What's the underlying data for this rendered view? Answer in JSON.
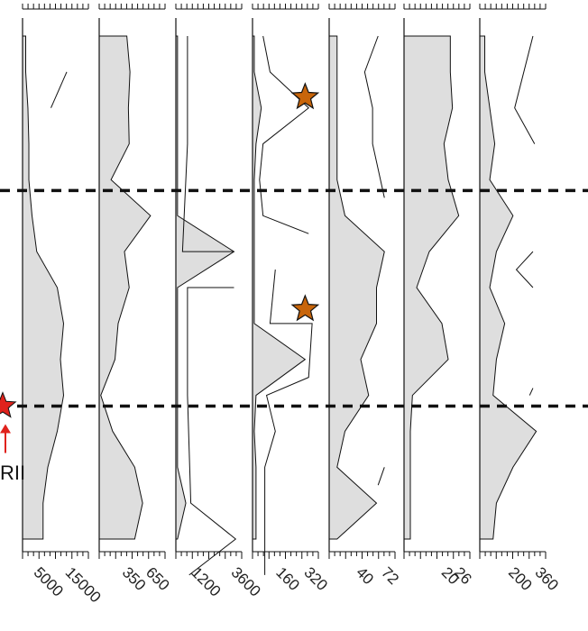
{
  "chart_data": {
    "type": "area",
    "orientation": "vertical-stratigraphic",
    "title": "",
    "grid": false,
    "legend": "none",
    "colors": {
      "fill": "#dedede",
      "line": "#111111",
      "marker": "#c8650a",
      "marker_stroke": "#111111",
      "highlight": "#e0221c",
      "dashed": "#111111"
    },
    "depth_axis": {
      "samples": 15,
      "ticks_shown": false
    },
    "panels": [
      {
        "name": "panel-1",
        "xlim": [
          0,
          20000
        ],
        "tick_labels": [
          "5000",
          "15000"
        ],
        "tick_values": [
          5000,
          15000
        ],
        "area": [
          1000,
          1000,
          1700,
          2000,
          2000,
          3000,
          4500,
          11000,
          13000,
          12000,
          13000,
          11000,
          8000,
          6500,
          6500
        ],
        "line_segments": [
          [
            [
              9000,
              2
            ],
            [
              14000,
              1
            ]
          ]
        ]
      },
      {
        "name": "panel-2",
        "xlim": [
          0,
          800
        ],
        "tick_labels": [
          "350",
          "650"
        ],
        "tick_values": [
          350,
          650
        ],
        "area": [
          350,
          390,
          370,
          380,
          150,
          650,
          320,
          380,
          240,
          200,
          20,
          170,
          450,
          550,
          450
        ]
      },
      {
        "name": "panel-3",
        "xlim": [
          0,
          3800
        ],
        "tick_labels": [
          "1200",
          "3600"
        ],
        "tick_values": [
          1200,
          3600
        ],
        "area": [
          100,
          100,
          100,
          100,
          100,
          100,
          3500,
          100,
          100,
          100,
          100,
          100,
          100,
          600,
          100
        ],
        "line_segments": [
          [
            [
              700,
              0
            ],
            [
              700,
              3
            ],
            [
              400,
              6
            ],
            [
              3500,
              6
            ]
          ],
          [
            [
              3500,
              7
            ],
            [
              700,
              7
            ],
            [
              700,
              10
            ],
            [
              900,
              13
            ],
            [
              3600,
              14
            ],
            [
              800,
              15
            ]
          ]
        ]
      },
      {
        "name": "panel-4",
        "xlim": [
          0,
          360
        ],
        "tick_labels": [
          "160",
          "320"
        ],
        "tick_values": [
          160,
          320
        ],
        "area": [
          10,
          10,
          50,
          20,
          10,
          10,
          10,
          10,
          10,
          300,
          20,
          10,
          20,
          20,
          20
        ],
        "line_segments": [
          [
            [
              60,
              0
            ],
            [
              100,
              1
            ],
            [
              320,
              2
            ],
            [
              60,
              3
            ],
            [
              40,
              4
            ],
            [
              60,
              5
            ],
            [
              320,
              5.5
            ]
          ],
          [
            [
              130,
              6.5
            ],
            [
              100,
              8
            ],
            [
              340,
              8
            ],
            [
              320,
              9.5
            ],
            [
              80,
              10
            ],
            [
              130,
              11
            ],
            [
              70,
              12
            ],
            [
              70,
              15
            ]
          ]
        ],
        "markers": [
          {
            "x": 300,
            "y": 1.7,
            "shape": "star"
          },
          {
            "x": 300,
            "y": 7.6,
            "shape": "star"
          }
        ]
      },
      {
        "name": "panel-5",
        "xlim": [
          0,
          80
        ],
        "tick_labels": [
          "40",
          "72"
        ],
        "tick_values": [
          40,
          72
        ],
        "area": [
          10,
          10,
          10,
          10,
          10,
          20,
          70,
          60,
          60,
          40,
          50,
          20,
          10,
          60,
          10
        ],
        "line_segments": [
          [
            [
              62,
              0
            ],
            [
              45,
              1
            ],
            [
              55,
              2
            ],
            [
              55,
              3
            ],
            [
              70,
              4.5
            ]
          ],
          [
            [
              62,
              12.5
            ],
            [
              70,
              12
            ]
          ]
        ]
      },
      {
        "name": "panel-6",
        "xlim": [
          0,
          30
        ],
        "tick_labels": [
          "20",
          "26"
        ],
        "tick_values": [
          20,
          26
        ],
        "area": [
          22,
          22,
          23,
          19,
          21,
          26,
          12,
          6,
          18,
          21,
          4,
          3,
          3,
          3,
          3
        ]
      },
      {
        "name": "panel-7",
        "xlim": [
          0,
          380
        ],
        "tick_labels": [
          "200",
          "360"
        ],
        "tick_values": [
          200,
          360
        ],
        "area": [
          30,
          30,
          60,
          90,
          60,
          200,
          100,
          60,
          150,
          100,
          80,
          340,
          200,
          100,
          80
        ],
        "line_segments": [
          [
            [
              320,
              0
            ],
            [
              210,
              2
            ],
            [
              330,
              3
            ]
          ],
          [
            [
              320,
              6
            ],
            [
              220,
              6.5
            ],
            [
              320,
              7
            ]
          ],
          [
            [
              300,
              10
            ],
            [
              320,
              9.8
            ]
          ]
        ]
      }
    ],
    "dashed_lines": [
      {
        "depth": 4.3
      },
      {
        "depth": 10.3
      }
    ],
    "annotations": [
      {
        "label": "RII",
        "depth": 10.3,
        "marker": "star"
      }
    ]
  }
}
